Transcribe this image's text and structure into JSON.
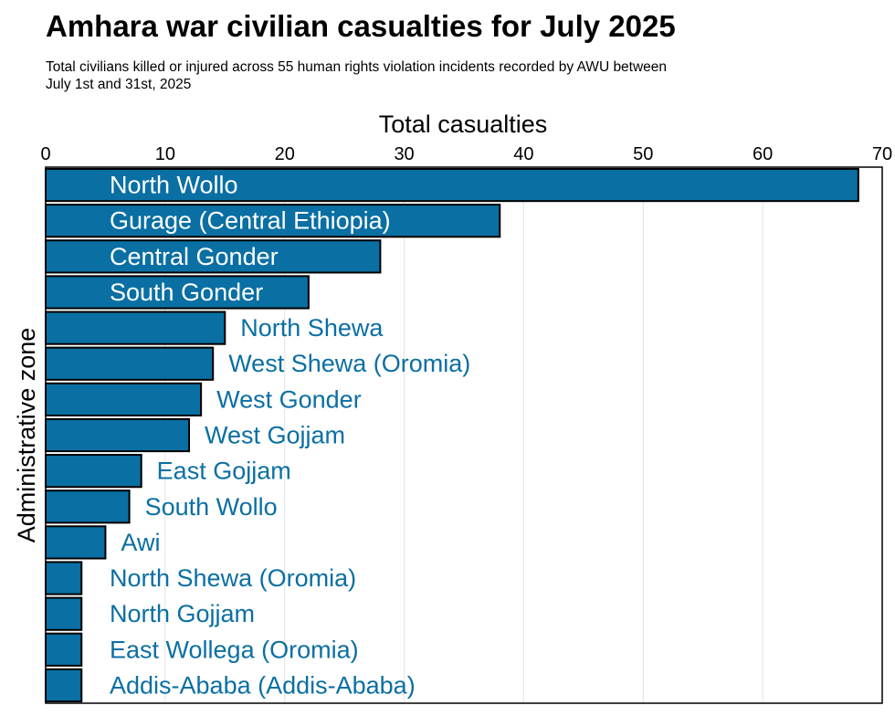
{
  "chart_data": {
    "type": "bar",
    "orientation": "horizontal",
    "title": "Amhara war civilian casualties for July 2025",
    "subtitle_lines": [
      "Total civilians killed or injured across 55 human rights violation incidents recorded by AWU between",
      " July 1st and 31st, 2025"
    ],
    "xlabel": "Total casualties",
    "ylabel": "Administrative zone",
    "xlim": [
      0,
      70
    ],
    "xticks": [
      0,
      10,
      20,
      30,
      40,
      50,
      60,
      70
    ],
    "grid": true,
    "categories": [
      "North Wollo",
      "Gurage (Central Ethiopia)",
      "Central Gonder",
      "South Gonder",
      "North Shewa",
      "West Shewa (Oromia)",
      "West Gonder",
      "West Gojjam",
      "East Gojjam",
      "South Wollo",
      "Awi",
      "North Shewa (Oromia)",
      "North Gojjam",
      "East Wollega (Oromia)",
      "Addis-Ababa (Addis-Ababa)"
    ],
    "values": [
      68,
      38,
      28,
      22,
      15,
      14,
      13,
      12,
      8,
      7,
      5,
      3,
      3,
      3,
      3
    ],
    "colors": {
      "bar_fill": "#0a6fa3",
      "bar_stroke": "#000000",
      "label_inside": "#ffffff",
      "label_outside": "#0a6fa3",
      "grid": "#e3e3e3"
    }
  }
}
